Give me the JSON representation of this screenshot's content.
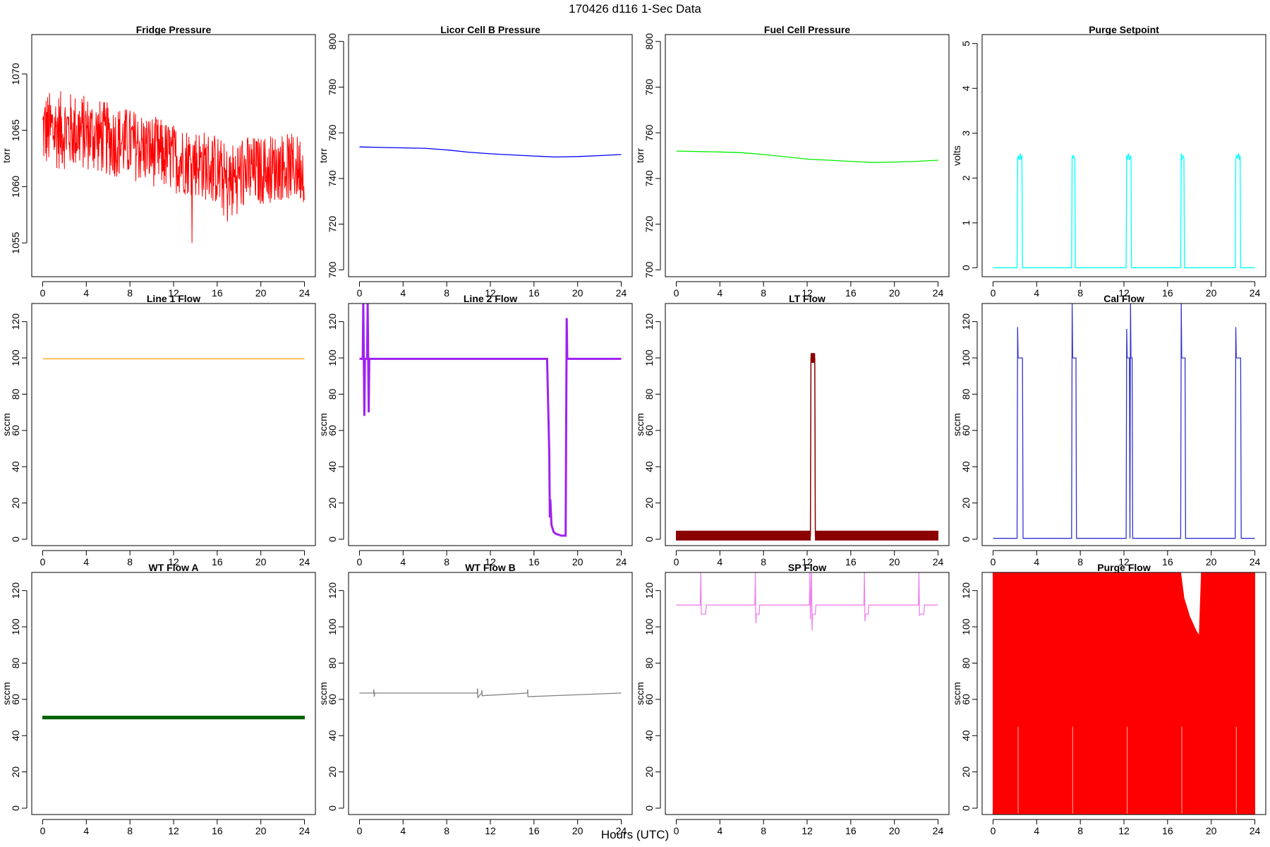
{
  "figure": {
    "title": "170426   d116   1-Sec Data",
    "xlabel": "Hours (UTC)"
  },
  "chart_data": [
    {
      "type": "line",
      "title": "Fridge Pressure",
      "ylabel": "torr",
      "xlim": [
        -1,
        25
      ],
      "ylim": [
        1052,
        1073.5
      ],
      "xticks": [
        0,
        4,
        8,
        12,
        16,
        20,
        24
      ],
      "yticks": [
        1055,
        1060,
        1065,
        1070
      ],
      "color": "#ff0000",
      "style": "noisy-band",
      "series": [
        {
          "x": [
            0,
            2,
            4,
            6,
            8,
            10,
            12,
            14,
            16,
            17,
            18,
            20,
            22,
            24
          ],
          "y": [
            1065,
            1065,
            1064.8,
            1064.2,
            1063.8,
            1063.2,
            1062.5,
            1062.2,
            1061.5,
            1060,
            1061.2,
            1061.4,
            1061.8,
            1061.6
          ],
          "band": [
            3.5,
            3.5,
            3.4,
            3.3,
            3.2,
            3.2,
            3.1,
            3.1,
            3.2,
            3.6,
            3.4,
            3.1,
            3.0,
            3.0
          ]
        }
      ]
    },
    {
      "type": "line",
      "title": "Licor Cell B Pressure",
      "ylabel": "torr",
      "xlim": [
        -1,
        25
      ],
      "ylim": [
        697,
        803
      ],
      "xticks": [
        0,
        4,
        8,
        12,
        16,
        20,
        24
      ],
      "yticks": [
        700,
        720,
        740,
        760,
        780,
        800
      ],
      "color": "#0000ff",
      "style": "line",
      "series": [
        {
          "x": [
            0,
            2,
            4,
            6,
            8,
            10,
            12,
            14,
            16,
            18,
            20,
            22,
            24
          ],
          "y": [
            753.8,
            753.6,
            753.4,
            753.2,
            752.5,
            751.5,
            750.8,
            750.3,
            749.8,
            749.4,
            749.6,
            750.0,
            750.5
          ]
        }
      ]
    },
    {
      "type": "line",
      "title": "Fuel Cell Pressure",
      "ylabel": "torr",
      "xlim": [
        -1,
        25
      ],
      "ylim": [
        697,
        803
      ],
      "xticks": [
        0,
        4,
        8,
        12,
        16,
        20,
        24
      ],
      "yticks": [
        700,
        720,
        740,
        760,
        780,
        800
      ],
      "color": "#00ee00",
      "style": "line",
      "series": [
        {
          "x": [
            0,
            2,
            4,
            6,
            8,
            10,
            12,
            14,
            16,
            18,
            20,
            22,
            24
          ],
          "y": [
            752,
            751.8,
            751.6,
            751.3,
            750.5,
            749.5,
            748.5,
            748,
            747.5,
            747,
            747.2,
            747.5,
            748
          ]
        }
      ]
    },
    {
      "type": "line",
      "title": "Purge Setpoint",
      "ylabel": "volts",
      "xlim": [
        -1,
        25
      ],
      "ylim": [
        -0.2,
        5.2
      ],
      "xticks": [
        0,
        4,
        8,
        12,
        16,
        20,
        24
      ],
      "yticks": [
        0,
        1,
        2,
        3,
        4,
        5
      ],
      "color": "#00ffff",
      "style": "line",
      "series": [
        {
          "x": [
            0,
            2.2,
            2.25,
            2.3,
            2.4,
            2.5,
            2.6,
            2.65,
            2.7,
            7.2,
            7.25,
            7.3,
            7.4,
            7.5,
            7.55,
            12.2,
            12.25,
            12.3,
            12.4,
            12.5,
            12.6,
            12.65,
            12.7,
            17.2,
            17.25,
            17.3,
            17.4,
            17.5,
            17.55,
            22.2,
            22.25,
            22.3,
            22.4,
            22.5,
            22.6,
            22.65,
            22.7,
            24
          ],
          "y": [
            0,
            0,
            2.4,
            2.5,
            2.4,
            2.55,
            2.4,
            2.5,
            0,
            0,
            2.5,
            2.45,
            2.5,
            2.4,
            0,
            0,
            2.5,
            2.4,
            2.55,
            2.4,
            2.5,
            2.45,
            0,
            0,
            2.55,
            2.4,
            2.5,
            2.45,
            0,
            0,
            2.4,
            2.5,
            2.45,
            2.55,
            2.4,
            2.5,
            0,
            0
          ]
        }
      ]
    },
    {
      "type": "line",
      "title": "Line 1 Flow",
      "ylabel": "sccm",
      "xlim": [
        -1,
        25
      ],
      "ylim": [
        -3.5,
        130
      ],
      "xticks": [
        0,
        4,
        8,
        12,
        16,
        20,
        24
      ],
      "yticks": [
        0,
        20,
        40,
        60,
        80,
        100,
        120
      ],
      "color": "#ffa500",
      "style": "line",
      "series": [
        {
          "x": [
            0,
            24
          ],
          "y": [
            99.5,
            99.5
          ]
        }
      ]
    },
    {
      "type": "line",
      "title": "Line 2 Flow",
      "ylabel": "sccm",
      "xlim": [
        -1,
        25
      ],
      "ylim": [
        -3.5,
        130
      ],
      "xticks": [
        0,
        4,
        8,
        12,
        16,
        20,
        24
      ],
      "yticks": [
        0,
        20,
        40,
        60,
        80,
        100,
        120
      ],
      "color": "#a020f0",
      "style": "thick-line",
      "series": [
        {
          "x": [
            0,
            0.3,
            0.35,
            0.45,
            0.5,
            0.7,
            0.75,
            0.85,
            0.9,
            17.2,
            17.4,
            17.45,
            17.5,
            17.6,
            17.8,
            18.0,
            18.5,
            18.9,
            19.0,
            19.05,
            19.1,
            24
          ],
          "y": [
            99.5,
            99.5,
            130,
            68,
            99.5,
            99.5,
            130,
            70,
            99.5,
            99.5,
            48,
            12,
            22,
            8,
            4,
            3,
            2,
            2,
            122,
            99.5,
            99.5,
            99.5
          ]
        }
      ]
    },
    {
      "type": "line",
      "title": "LT Flow",
      "ylabel": "sccm",
      "xlim": [
        -1,
        25
      ],
      "ylim": [
        -3.5,
        130
      ],
      "xticks": [
        0,
        4,
        8,
        12,
        16,
        20,
        24
      ],
      "yticks": [
        0,
        20,
        40,
        60,
        80,
        100,
        120
      ],
      "color": "#8b0000",
      "style": "band-line",
      "series": [
        {
          "x": [
            0,
            12.3,
            12.35,
            12.7,
            12.75,
            24
          ],
          "y": [
            2,
            2,
            100,
            100,
            2,
            2
          ],
          "band": [
            2.5,
            2.5,
            2.5,
            2.5,
            2.5,
            2.5
          ]
        }
      ]
    },
    {
      "type": "line",
      "title": "Cal Flow",
      "ylabel": "sccm",
      "xlim": [
        -1,
        25
      ],
      "ylim": [
        -3.5,
        130
      ],
      "xticks": [
        0,
        4,
        8,
        12,
        16,
        20,
        24
      ],
      "yticks": [
        0,
        20,
        40,
        60,
        80,
        100,
        120
      ],
      "color": "#3333cc",
      "style": "line",
      "series": [
        {
          "x": [
            0,
            2.2,
            2.25,
            2.3,
            2.35,
            2.7,
            2.75,
            7.2,
            7.25,
            7.3,
            7.6,
            7.65,
            12.2,
            12.25,
            12.3,
            12.5,
            12.55,
            12.6,
            12.65,
            12.75,
            12.8,
            17.2,
            17.25,
            17.3,
            17.6,
            17.65,
            22.2,
            22.25,
            22.3,
            22.35,
            22.7,
            22.75,
            24
          ],
          "y": [
            0.5,
            0.5,
            117,
            100,
            100,
            100,
            0.5,
            0.5,
            130,
            100,
            100,
            0.5,
            0.5,
            116,
            100,
            100,
            0.5,
            130,
            100,
            100,
            0.5,
            0.5,
            130,
            100,
            100,
            0.5,
            0.5,
            117,
            100,
            100,
            100,
            0.5,
            0.5
          ]
        }
      ]
    },
    {
      "type": "line",
      "title": "WT Flow A",
      "ylabel": "sccm",
      "xlim": [
        -1,
        25
      ],
      "ylim": [
        -3.5,
        130
      ],
      "xticks": [
        0,
        4,
        8,
        12,
        16,
        20,
        24
      ],
      "yticks": [
        0,
        20,
        40,
        60,
        80,
        100,
        120
      ],
      "color": "#006400",
      "style": "band-line",
      "series": [
        {
          "x": [
            0,
            24
          ],
          "y": [
            50,
            50
          ],
          "band": [
            0.8,
            0.8
          ]
        }
      ]
    },
    {
      "type": "line",
      "title": "WT Flow B",
      "ylabel": "sccm",
      "xlim": [
        -1,
        25
      ],
      "ylim": [
        -3.5,
        130
      ],
      "xticks": [
        0,
        4,
        8,
        12,
        16,
        20,
        24
      ],
      "yticks": [
        0,
        20,
        40,
        60,
        80,
        100,
        120
      ],
      "color": "#808080",
      "style": "line",
      "series": [
        {
          "x": [
            0,
            1.3,
            1.32,
            1.36,
            1.4,
            10.8,
            10.82,
            10.85,
            11.2,
            11.22,
            11.25,
            15.4,
            15.42,
            15.45,
            24
          ],
          "y": [
            63.5,
            63.5,
            65.5,
            61.5,
            63.5,
            63.5,
            66,
            61,
            63.5,
            65,
            62,
            63.5,
            65.5,
            61.5,
            63.5
          ]
        }
      ]
    },
    {
      "type": "line",
      "title": "SP Flow",
      "ylabel": "sccm",
      "xlim": [
        -1,
        25
      ],
      "ylim": [
        -3.5,
        130
      ],
      "xticks": [
        0,
        4,
        8,
        12,
        16,
        20,
        24
      ],
      "yticks": [
        0,
        20,
        40,
        60,
        80,
        100,
        120
      ],
      "color": "#ee82ee",
      "style": "line",
      "series": [
        {
          "x": [
            0,
            2.2,
            2.25,
            2.3,
            2.35,
            2.7,
            2.75,
            7.2,
            7.25,
            7.3,
            7.35,
            7.6,
            7.65,
            12.2,
            12.25,
            12.3,
            12.4,
            12.45,
            12.5,
            12.55,
            12.75,
            12.8,
            17.2,
            17.25,
            17.3,
            17.35,
            17.6,
            17.65,
            22.2,
            22.25,
            22.3,
            22.35,
            22.7,
            22.75,
            24
          ],
          "y": [
            112,
            112,
            130,
            107,
            107,
            107,
            112,
            112,
            130,
            102,
            107,
            107,
            112,
            112,
            130,
            104,
            130,
            98,
            107,
            107,
            107,
            112,
            112,
            130,
            103,
            107,
            107,
            112,
            112,
            130,
            106,
            107,
            107,
            112,
            112
          ]
        }
      ]
    },
    {
      "type": "line",
      "title": "Purge Flow",
      "ylabel": "sccm",
      "xlim": [
        -1,
        25
      ],
      "ylim": [
        -3.5,
        130
      ],
      "xticks": [
        0,
        4,
        8,
        12,
        16,
        20,
        24
      ],
      "yticks": [
        0,
        20,
        40,
        60,
        80,
        100,
        120
      ],
      "color": "#ff0000",
      "style": "fill-block",
      "series": [
        {
          "x": [
            0,
            17.2,
            17.5,
            17.8,
            18.0,
            18.3,
            18.6,
            18.9,
            19.1,
            24
          ],
          "y": [
            130,
            130,
            116,
            110,
            106,
            102,
            98,
            95,
            130,
            130
          ],
          "ymin": [
            -3.5,
            -3.5,
            -3.5,
            -3.5,
            -3.5,
            -3.5,
            -3.5,
            -3.5,
            -3.5,
            -3.5
          ]
        }
      ]
    }
  ]
}
